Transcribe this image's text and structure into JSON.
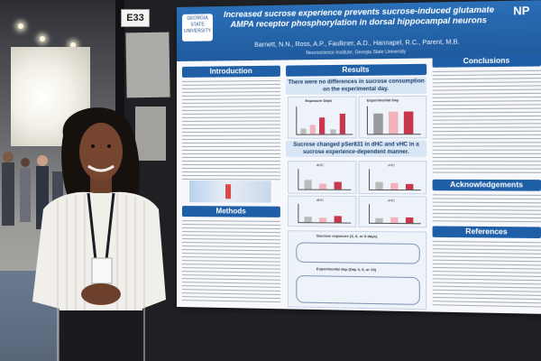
{
  "scene": {
    "board_label": "E33"
  },
  "poster": {
    "title": "Increased sucrose experience prevents sucrose-induced glutamate AMPA receptor phosphorylation in dorsal hippocampal neurons",
    "authors": "Barnett, N.N., Ross, A.P., Faulkner, A.D., Hannapel, R.C., Parent, M.B.",
    "affiliation": "Neuroscience Institute, Georgia State University",
    "logo_left": "GEORGIA STATE UNIVERSITY",
    "logo_right": "NP",
    "sections": {
      "introduction": "Introduction",
      "methods": "Methods",
      "results": "Results",
      "conclusions": "Conclusions",
      "acknowledgements": "Acknowledgements",
      "references": "References"
    },
    "results_sub1": "There were no differences in sucrose consumption on the experimental day.",
    "results_sub2": "Sucrose changed pSer831 in dHC and vHC in a sucrose experience-dependent manner.",
    "chart1_title": "Exposure Days",
    "chart2_title": "Experimental Day",
    "mini_labels": [
      "dHC",
      "vHC",
      "dHC",
      "vHC"
    ],
    "flow_title1": "Sucrose exposure (3, 6, or 9 days)",
    "flow_title2": "Experimental day (Day 3, 6, or 10)"
  },
  "colors": {
    "poster_blue": "#1f5fa8",
    "bar_pink": "#f2b3bf",
    "bar_red": "#c8374d",
    "bar_grey": "#9a9a9a"
  }
}
